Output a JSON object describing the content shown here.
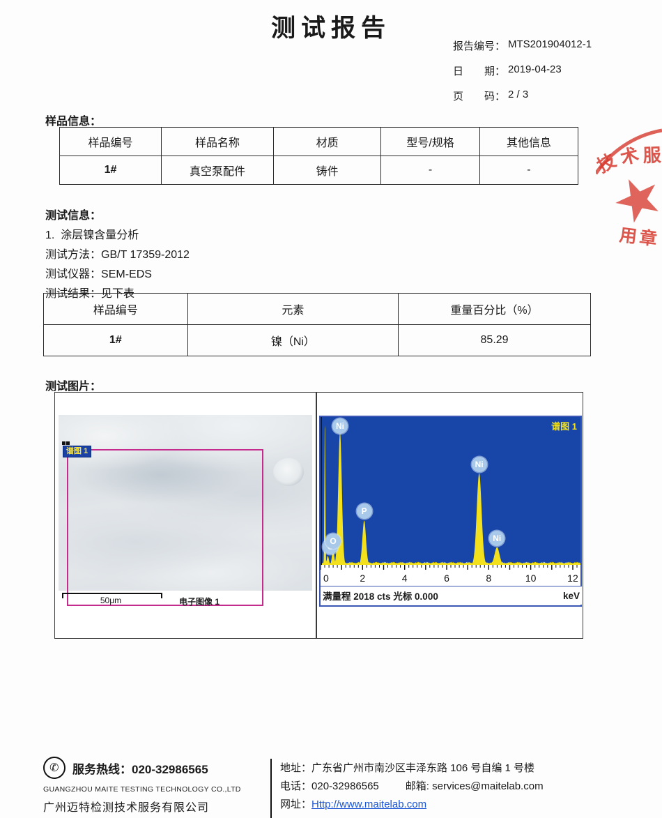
{
  "header": {
    "title": "测试报告",
    "meta": [
      {
        "label": "报告编号：",
        "value": "MTS201904012-1"
      },
      {
        "label": "日　　期：",
        "value": "2019-04-23"
      },
      {
        "label": "页　　码：",
        "value": "2 / 3"
      }
    ]
  },
  "sample_section": {
    "heading": "样品信息：",
    "headers": [
      "样品编号",
      "样品名称",
      "材质",
      "型号/规格",
      "其他信息"
    ],
    "row": [
      "1#",
      "真空泵配件",
      "铸件",
      "-",
      "-"
    ]
  },
  "test_section": {
    "heading": "测试信息：",
    "item": "1.  涂层镍含量分析",
    "method_label": "测试方法：",
    "method": "GB/T 17359-2012",
    "instrument_label": "测试仪器：",
    "instrument": "SEM-EDS",
    "result_label": "测试结果：",
    "result": "见下表"
  },
  "result_section": {
    "headers": [
      "样品编号",
      "元素",
      "重量百分比（%）"
    ],
    "row": [
      "1#",
      "镍（Ni）",
      "85.29"
    ]
  },
  "images_section": {
    "heading": "测试图片：",
    "sem": {
      "label": "谱图 1",
      "scale_text": "50μm",
      "caption": "电子图像 1"
    },
    "spectrum": {
      "title": "谱图 1",
      "status_left": "满量程 2018 cts 光标 0.000",
      "status_right": "keV"
    }
  },
  "chart_data": {
    "type": "area",
    "title": "谱图 1",
    "xlabel": "keV",
    "x_ticks": [
      0,
      2,
      4,
      6,
      8,
      10,
      12
    ],
    "xlim": [
      0,
      12.3
    ],
    "full_scale_cts": 2018,
    "cursor": "0.000",
    "legend": "none",
    "grid": false,
    "peaks": [
      {
        "element": "",
        "keV": 0.14,
        "rel_height": 1.0,
        "sigma": 0.022,
        "labeled": false
      },
      {
        "element": "C",
        "keV": 0.28,
        "rel_height": 0.06,
        "sigma": 0.05,
        "labeled": true
      },
      {
        "element": "O",
        "keV": 0.53,
        "rel_height": 0.1,
        "sigma": 0.055,
        "labeled": true
      },
      {
        "element": "Ni",
        "keV": 0.86,
        "rel_height": 0.9,
        "sigma": 0.085,
        "labeled": true
      },
      {
        "element": "P",
        "keV": 2.01,
        "rel_height": 0.3,
        "sigma": 0.085,
        "labeled": true
      },
      {
        "element": "Ni",
        "keV": 7.48,
        "rel_height": 0.62,
        "sigma": 0.115,
        "labeled": true
      },
      {
        "element": "Ni",
        "keV": 8.33,
        "rel_height": 0.12,
        "sigma": 0.115,
        "labeled": true
      }
    ],
    "baseline_rel_height": 0.018,
    "colors": {
      "background": "#1845a8",
      "peak": "#f2e11c",
      "label_bubble": "#a9c9ea",
      "title_text": "#f2e11c"
    }
  },
  "stamp": {
    "text_top_1": "技",
    "text_top_2": "术",
    "text_top_3": "服",
    "text_bottom": "用章",
    "color": "#d6392e"
  },
  "footer": {
    "hotline_label": "服务热线：",
    "hotline": "020-32986565",
    "company_en": "GUANGZHOU MAITE TESTING TECHNOLOGY CO.,LTD",
    "company_cn": "广州迈特检测技术服务有限公司",
    "address_label": "地址：",
    "address": "广东省广州市南沙区丰泽东路 106 号自编 1 号楼",
    "phone_label": "电话：",
    "phone": "020-32986565",
    "email_label": "邮箱:",
    "email": "services@maitelab.com",
    "web_label": "网址：",
    "web": "Http://www.maitelab.com"
  }
}
